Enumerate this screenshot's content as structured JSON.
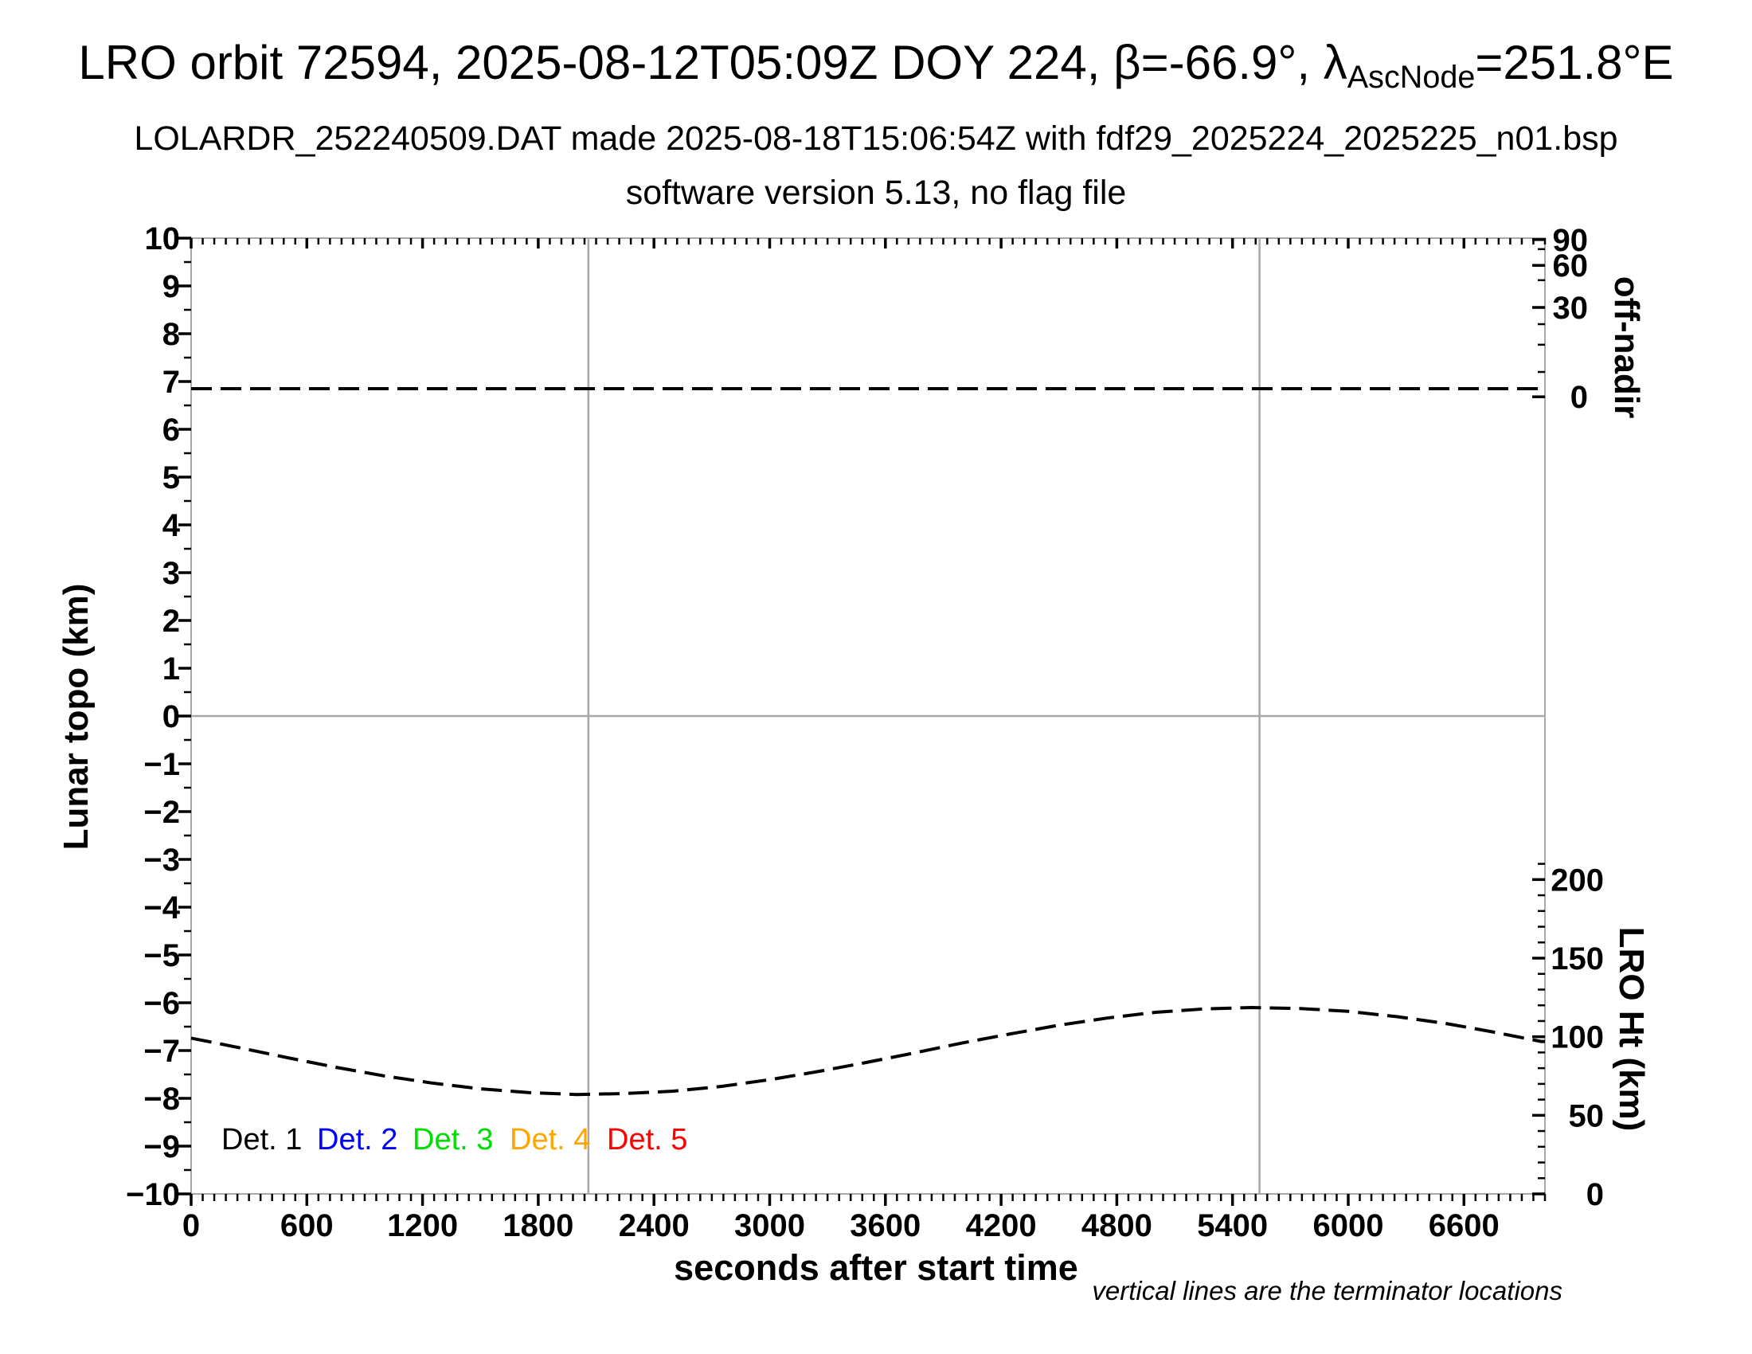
{
  "header": {
    "title_prefix": "LRO orbit 72594, 2025-08-12T05:09Z DOY 224, β=-66.9°, λ",
    "title_sub": "AscNode",
    "title_suffix": "=251.8°E",
    "subtitle": "LOLARDR_252240509.DAT made 2025-08-18T15:06:54Z with fdf29_2025224_2025225_n01.bsp",
    "version_line": "software version 5.13, no flag file"
  },
  "footnote": "vertical lines are the terminator locations",
  "legend": [
    {
      "label": "Det. 1",
      "color": "#000000"
    },
    {
      "label": "Det. 2",
      "color": "#0000ff"
    },
    {
      "label": "Det. 3",
      "color": "#00dd00"
    },
    {
      "label": "Det. 4",
      "color": "#ffa500"
    },
    {
      "label": "Det. 5",
      "color": "#ff0000"
    }
  ],
  "axes": {
    "x": {
      "label": "seconds after start time",
      "min": 0,
      "max": 7020,
      "major_step": 600,
      "minor_step": 60,
      "last_labeled_tick": 6600
    },
    "y_left": {
      "label": "Lunar topo (km)",
      "min": -10,
      "max": 10,
      "major_step": 1,
      "minor_step": 0.5
    },
    "y_right_top": {
      "label": "off-nadir",
      "ticks_major": [
        {
          "pos": 9.97,
          "label": "90"
        },
        {
          "pos": 9.43,
          "label": "60"
        },
        {
          "pos": 8.55,
          "label": "30"
        },
        {
          "pos": 6.68,
          "label": "0"
        }
      ],
      "ticks_minor": [
        9.77,
        9.12,
        8.2,
        7.77,
        7.2
      ]
    },
    "y_right_bottom": {
      "label": "LRO Ht (km)",
      "min": 0,
      "max": 210,
      "major_step": 50,
      "minor_step": 10,
      "km_per_left_unit": 30.405
    }
  },
  "chart_data": {
    "type": "line",
    "xlabel": "seconds after start time",
    "ylabel_left": "Lunar topo (km)",
    "ylabel_right_top": "off-nadir",
    "ylabel_right_bottom": "LRO Ht (km)",
    "xlim": [
      0,
      7020
    ],
    "ylim_left": [
      -10,
      10
    ],
    "x_major_ticks": [
      0,
      600,
      1200,
      1800,
      2400,
      3000,
      3600,
      4200,
      4800,
      5400,
      6000,
      6600
    ],
    "x_minor_step": 60,
    "grid": "off",
    "zero_line_left_axis": 0,
    "terminator_lines_t": [
      2060,
      5540
    ],
    "line_color_gridlines": "#a8a8a8",
    "series": [
      {
        "name": "off-nadir angle",
        "line_style": "dashed",
        "color": "#000000",
        "axis": "right-top (off-nadir degrees)",
        "approx_off_nadir_deg": 3,
        "note": "flat line slightly above the 0-degree tick; y given as left-axis equivalent position",
        "points": [
          [
            0,
            6.85
          ],
          [
            7020,
            6.85
          ]
        ]
      },
      {
        "name": "LRO height",
        "line_style": "dashed",
        "color": "#000000",
        "axis": "right-bottom (LRO Ht km)",
        "note": "y given as left-axis equivalent position; heights_km is the value on the LRO Ht axis",
        "points": [
          [
            0,
            -6.74
          ],
          [
            250,
            -6.94
          ],
          [
            500,
            -7.15
          ],
          [
            750,
            -7.35
          ],
          [
            1000,
            -7.53
          ],
          [
            1250,
            -7.68
          ],
          [
            1500,
            -7.8
          ],
          [
            1750,
            -7.88
          ],
          [
            2000,
            -7.92
          ],
          [
            2250,
            -7.9
          ],
          [
            2500,
            -7.85
          ],
          [
            2750,
            -7.75
          ],
          [
            3000,
            -7.61
          ],
          [
            3250,
            -7.44
          ],
          [
            3500,
            -7.25
          ],
          [
            3750,
            -7.05
          ],
          [
            4000,
            -6.84
          ],
          [
            4250,
            -6.65
          ],
          [
            4500,
            -6.47
          ],
          [
            4750,
            -6.32
          ],
          [
            5000,
            -6.2
          ],
          [
            5250,
            -6.13
          ],
          [
            5500,
            -6.1
          ],
          [
            5750,
            -6.12
          ],
          [
            6000,
            -6.18
          ],
          [
            6250,
            -6.29
          ],
          [
            6500,
            -6.43
          ],
          [
            6750,
            -6.61
          ],
          [
            7000,
            -6.81
          ],
          [
            7020,
            -6.81
          ]
        ],
        "heights_km": [
          99.1,
          93.0,
          86.8,
          80.7,
          75.2,
          70.5,
          66.9,
          64.5,
          63.4,
          63.8,
          65.5,
          68.5,
          72.7,
          77.8,
          83.6,
          89.8,
          96.0,
          102.0,
          107.4,
          112.0,
          115.5,
          117.7,
          118.6,
          118.0,
          116.1,
          112.9,
          108.5,
          103.1,
          97.0,
          96.9
        ]
      }
    ]
  }
}
